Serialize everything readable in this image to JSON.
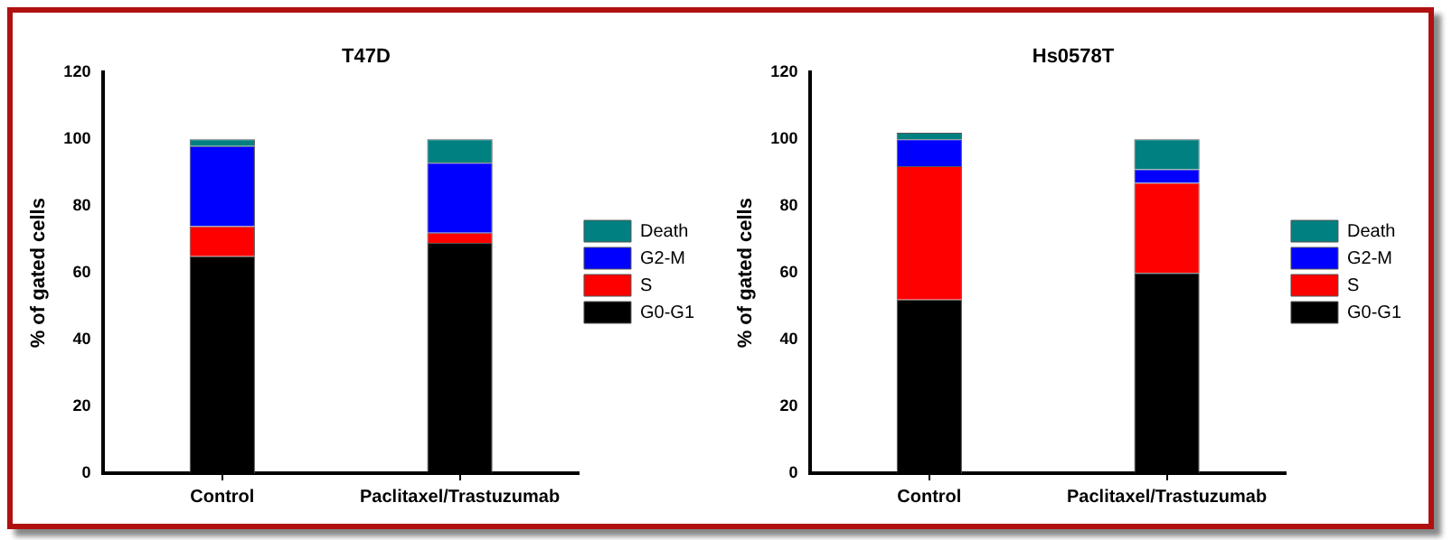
{
  "chart_data": [
    {
      "type": "bar",
      "title": "T47D",
      "ylabel": "% of gated cells",
      "categories": [
        "Control",
        "Paclitaxel/Trastuzumab"
      ],
      "stacked": true,
      "ylim": [
        0,
        120
      ],
      "yticks": [
        0,
        20,
        40,
        60,
        80,
        100,
        120
      ],
      "grid": false,
      "legend": "right",
      "series": [
        {
          "name": "G0-G1",
          "color": "#000000",
          "values": [
            65,
            69
          ]
        },
        {
          "name": "S",
          "color": "#ff0000",
          "values": [
            9,
            3
          ]
        },
        {
          "name": "G2-M",
          "color": "#0000ff",
          "values": [
            24,
            21
          ]
        },
        {
          "name": "Death",
          "color": "#008080",
          "values": [
            2,
            7
          ]
        }
      ]
    },
    {
      "type": "bar",
      "title": "Hs0578T",
      "ylabel": "% of gated cells",
      "categories": [
        "Control",
        "Paclitaxel/Trastuzumab"
      ],
      "stacked": true,
      "ylim": [
        0,
        120
      ],
      "yticks": [
        0,
        20,
        40,
        60,
        80,
        100,
        120
      ],
      "grid": false,
      "legend": "right",
      "series": [
        {
          "name": "G0-G1",
          "color": "#000000",
          "values": [
            52,
            60
          ]
        },
        {
          "name": "S",
          "color": "#ff0000",
          "values": [
            40,
            27
          ]
        },
        {
          "name": "G2-M",
          "color": "#0000ff",
          "values": [
            8,
            4
          ]
        },
        {
          "name": "Death",
          "color": "#008080",
          "values": [
            2,
            9
          ]
        }
      ]
    }
  ]
}
